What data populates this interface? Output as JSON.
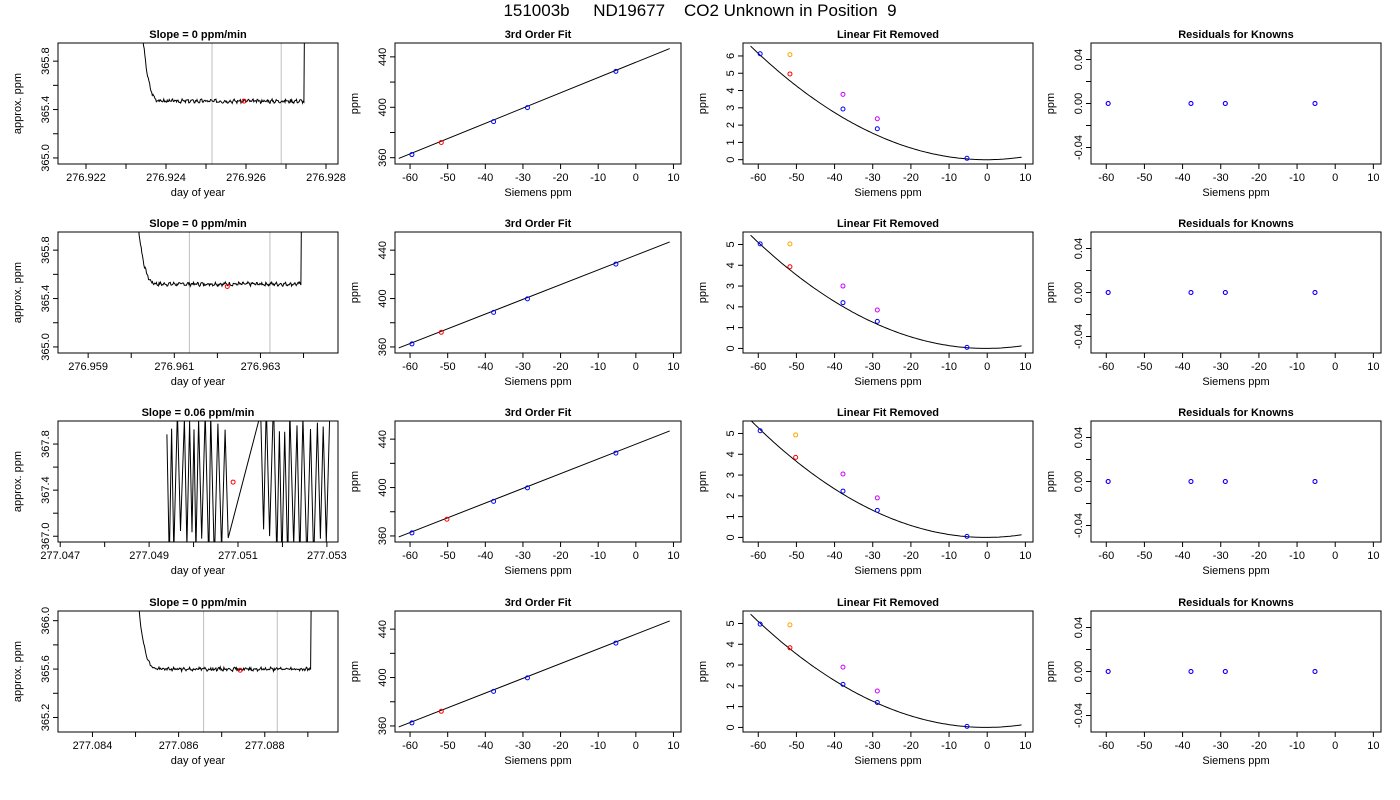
{
  "main_title": "151003b     ND19677    CO2 Unknown in Position  9",
  "colors": {
    "line": "#000000",
    "known": "#0000ff",
    "sample": "#ff0000",
    "raw_unknown": "#ffa500",
    "raw_known": "#cc00ff",
    "vline": "#bebebe"
  },
  "chart_data": [
    {
      "type": "line",
      "panel": "trace",
      "title": "Slope =  0  ppm/min",
      "xlabel": "day of year",
      "ylabel": "approx. ppm",
      "xlim": [
        276.9213,
        276.9283
      ],
      "ylim": [
        364.95,
        365.95
      ],
      "xticks": [
        276.922,
        276.924,
        276.926,
        276.928
      ],
      "xtick_labels": [
        "276.922",
        "276.924",
        "276.926",
        "276.928"
      ],
      "xticks_minor": [
        276.923,
        276.925,
        276.927
      ],
      "yticks": [
        365.0,
        365.4,
        365.8
      ],
      "ytick_labels": [
        "365.0",
        "365.4",
        "365.8"
      ],
      "yticks_minor": [
        365.2,
        365.6
      ],
      "trace": {
        "start": 276.9232,
        "end": 276.9276,
        "rise_start": 276.92332,
        "rise_end": 276.92745,
        "baseline": 365.47,
        "noise": 0.012,
        "seed": 3
      },
      "vlines": [
        276.92515,
        276.92688
      ],
      "marker": {
        "x": 276.92595,
        "y": 365.47
      }
    },
    {
      "type": "line",
      "panel": "fit",
      "title": "3rd Order Fit",
      "xlabel": "Siemens ppm",
      "ylabel": "ppm",
      "xlim": [
        -64,
        12
      ],
      "ylim": [
        355,
        451
      ],
      "xticks": [
        -60,
        -50,
        -40,
        -30,
        -20,
        -10,
        0,
        10
      ],
      "xtick_labels": [
        "-60",
        "-50",
        "-40",
        "-30",
        "-20",
        "-10",
        "0",
        "10"
      ],
      "yticks": [
        360,
        400,
        440
      ],
      "ytick_labels": [
        "360",
        "400",
        "440"
      ],
      "yticks_minor": [
        380,
        420
      ],
      "curve": {
        "x": [
          -63,
          9
        ],
        "y": [
          359.4,
          446.6
        ]
      },
      "known": {
        "x": [
          -59.5,
          -37.8,
          -28.8,
          -5.3
        ],
        "y": [
          362.5,
          388.6,
          399.7,
          428.5
        ]
      },
      "sample": {
        "x": [
          -51.7
        ],
        "y": [
          372.1
        ]
      }
    },
    {
      "type": "scatter",
      "panel": "linear",
      "title": "Linear Fit Removed",
      "xlabel": "Siemens ppm",
      "ylabel": "ppm",
      "xlim": [
        -64,
        12
      ],
      "ylim": [
        -0.25,
        6.75
      ],
      "xticks": [
        -60,
        -50,
        -40,
        -30,
        -20,
        -10,
        0,
        10
      ],
      "xtick_labels": [
        "-60",
        "-50",
        "-40",
        "-30",
        "-20",
        "-10",
        "0",
        "10"
      ],
      "yticks": [
        0,
        1,
        2,
        3,
        4,
        5,
        6
      ],
      "ytick_labels": [
        "0",
        "1",
        "2",
        "3",
        "4",
        "5",
        "6"
      ],
      "curve": {
        "x0": -0.2,
        "a": 0.00172,
        "xmin": -62,
        "xmax": 9
      },
      "known": {
        "x": [
          -59.5,
          -37.8,
          -28.8,
          -5.3
        ],
        "y": [
          6.13,
          2.93,
          1.79,
          0.08
        ]
      },
      "sample": {
        "x": [
          -51.7
        ],
        "y": [
          4.96
        ]
      },
      "raw_unknown": {
        "x": [
          -51.7
        ],
        "y": [
          6.08
        ]
      },
      "raw_known": {
        "x": [
          -37.8,
          -28.8
        ],
        "y": [
          3.78,
          2.37
        ]
      }
    },
    {
      "type": "scatter",
      "panel": "resid",
      "title": "Residuals for Knowns",
      "xlabel": "Siemens ppm",
      "ylabel": "ppm",
      "xlim": [
        -64,
        12
      ],
      "ylim": [
        -0.055,
        0.055
      ],
      "xticks": [
        -60,
        -50,
        -40,
        -30,
        -20,
        -10,
        0,
        10
      ],
      "xtick_labels": [
        "-60",
        "-50",
        "-40",
        "-30",
        "-20",
        "-10",
        "0",
        "10"
      ],
      "yticks": [
        -0.04,
        0,
        0.04
      ],
      "ytick_labels": [
        "-0.04",
        "0.00",
        "0.04"
      ],
      "yticks_minor": [
        -0.02,
        0.02
      ],
      "points": {
        "x": [
          -59.5,
          -37.8,
          -28.8,
          -5.3
        ],
        "y": [
          0,
          0,
          0,
          0
        ]
      }
    },
    {
      "type": "line",
      "panel": "trace",
      "title": "Slope =  0  ppm/min",
      "xlabel": "day of year",
      "ylabel": "approx. ppm",
      "xlim": [
        276.9583,
        276.9648
      ],
      "ylim": [
        364.95,
        365.95
      ],
      "xticks": [
        276.959,
        276.961,
        276.963
      ],
      "xtick_labels": [
        "276.959",
        "276.961",
        "276.963"
      ],
      "xticks_minor": [
        276.96,
        276.962,
        276.964
      ],
      "yticks": [
        365.0,
        365.4,
        365.8
      ],
      "ytick_labels": [
        "365.0",
        "365.4",
        "365.8"
      ],
      "yticks_minor": [
        365.2,
        365.6
      ],
      "trace": {
        "start": 276.96,
        "end": 276.964,
        "rise_start": 276.96005,
        "rise_end": 276.96394,
        "baseline": 365.52,
        "noise": 0.012,
        "seed": 7
      },
      "vlines": [
        276.96135,
        276.96322
      ],
      "marker": {
        "x": 276.96223,
        "y": 365.5
      }
    },
    {
      "type": "line",
      "panel": "fit",
      "title": "3rd Order Fit",
      "xlabel": "Siemens ppm",
      "ylabel": "ppm",
      "xlim": [
        -64,
        12
      ],
      "ylim": [
        355,
        455
      ],
      "xticks": [
        -60,
        -50,
        -40,
        -30,
        -20,
        -10,
        0,
        10
      ],
      "xtick_labels": [
        "-60",
        "-50",
        "-40",
        "-30",
        "-20",
        "-10",
        "0",
        "10"
      ],
      "yticks": [
        360,
        400,
        440
      ],
      "ytick_labels": [
        "360",
        "400",
        "440"
      ],
      "yticks_minor": [
        380,
        420
      ],
      "curve": {
        "x": [
          -63,
          9
        ],
        "y": [
          359.2,
          446.8
        ]
      },
      "known": {
        "x": [
          -59.5,
          -37.8,
          -28.8,
          -5.3
        ],
        "y": [
          362.5,
          388.6,
          399.7,
          428.5
        ]
      },
      "sample": {
        "x": [
          -51.7
        ],
        "y": [
          372.1
        ]
      }
    },
    {
      "type": "scatter",
      "panel": "linear",
      "title": "Linear Fit Removed",
      "xlabel": "Siemens ppm",
      "ylabel": "ppm",
      "xlim": [
        -64,
        12
      ],
      "ylim": [
        -0.22,
        5.6
      ],
      "xticks": [
        -60,
        -50,
        -40,
        -30,
        -20,
        -10,
        0,
        10
      ],
      "xtick_labels": [
        "-60",
        "-50",
        "-40",
        "-30",
        "-20",
        "-10",
        "0",
        "10"
      ],
      "yticks": [
        0,
        1,
        2,
        3,
        4,
        5
      ],
      "ytick_labels": [
        "0",
        "1",
        "2",
        "3",
        "4",
        "5"
      ],
      "curve": {
        "x0": -0.3,
        "a": 0.00143,
        "xmin": -62,
        "xmax": 9
      },
      "known": {
        "x": [
          -59.5,
          -37.8,
          -28.8,
          -5.3
        ],
        "y": [
          5.03,
          2.2,
          1.3,
          0.05
        ]
      },
      "sample": {
        "x": [
          -51.7
        ],
        "y": [
          3.93
        ]
      },
      "raw_unknown": {
        "x": [
          -51.7
        ],
        "y": [
          5.03
        ]
      },
      "raw_known": {
        "x": [
          -37.8,
          -28.8
        ],
        "y": [
          3.0,
          1.85
        ]
      }
    },
    {
      "type": "scatter",
      "panel": "resid",
      "title": "Residuals for Knowns",
      "xlabel": "Siemens ppm",
      "ylabel": "ppm",
      "xlim": [
        -64,
        12
      ],
      "ylim": [
        -0.055,
        0.055
      ],
      "xticks": [
        -60,
        -50,
        -40,
        -30,
        -20,
        -10,
        0,
        10
      ],
      "xtick_labels": [
        "-60",
        "-50",
        "-40",
        "-30",
        "-20",
        "-10",
        "0",
        "10"
      ],
      "yticks": [
        -0.04,
        0,
        0.04
      ],
      "ytick_labels": [
        "-0.04",
        "0.00",
        "0.04"
      ],
      "yticks_minor": [
        -0.02,
        0.02
      ],
      "points": {
        "x": [
          -59.5,
          -37.8,
          -28.8,
          -5.3
        ],
        "y": [
          0,
          0,
          0,
          0
        ]
      }
    },
    {
      "type": "line",
      "panel": "trace",
      "title": "Slope =  0.06  ppm/min",
      "xlabel": "day of year",
      "ylabel": "approx. ppm",
      "xlim": [
        277.04695,
        277.05325
      ],
      "ylim": [
        366.95,
        368.0
      ],
      "xticks": [
        277.047,
        277.049,
        277.051,
        277.053
      ],
      "xtick_labels": [
        "277.047",
        "277.049",
        "277.051",
        "277.053"
      ],
      "xticks_minor": [
        277.048,
        277.05,
        277.052
      ],
      "yticks": [
        367.0,
        367.4,
        367.8
      ],
      "ytick_labels": [
        "367.0",
        "367.4",
        "367.8"
      ],
      "yticks_minor": [
        367.2,
        367.6
      ],
      "trace": {
        "noisy": true,
        "start": 277.0494,
        "end": 277.0531,
        "gap_start": 277.0508,
        "gap_end": 277.0515,
        "seed": 11
      },
      "vlines": [],
      "marker": {
        "x": 277.05089,
        "y": 367.47
      }
    },
    {
      "type": "line",
      "panel": "fit",
      "title": "3rd Order Fit",
      "xlabel": "Siemens ppm",
      "ylabel": "ppm",
      "xlim": [
        -64,
        12
      ],
      "ylim": [
        355,
        455
      ],
      "xticks": [
        -60,
        -50,
        -40,
        -30,
        -20,
        -10,
        0,
        10
      ],
      "xtick_labels": [
        "-60",
        "-50",
        "-40",
        "-30",
        "-20",
        "-10",
        "0",
        "10"
      ],
      "yticks": [
        360,
        400,
        440
      ],
      "ytick_labels": [
        "360",
        "400",
        "440"
      ],
      "yticks_minor": [
        380,
        420
      ],
      "curve": {
        "x": [
          -63,
          9
        ],
        "y": [
          359.2,
          446.8
        ]
      },
      "known": {
        "x": [
          -59.5,
          -37.8,
          -28.8,
          -5.3
        ],
        "y": [
          362.5,
          388.6,
          399.7,
          428.5
        ]
      },
      "sample": {
        "x": [
          -50.2
        ],
        "y": [
          373.8
        ]
      }
    },
    {
      "type": "scatter",
      "panel": "linear",
      "title": "Linear Fit Removed",
      "xlabel": "Siemens ppm",
      "ylabel": "ppm",
      "xlim": [
        -64,
        12
      ],
      "ylim": [
        -0.22,
        5.6
      ],
      "xticks": [
        -60,
        -50,
        -40,
        -30,
        -20,
        -10,
        0,
        10
      ],
      "xtick_labels": [
        "-60",
        "-50",
        "-40",
        "-30",
        "-20",
        "-10",
        "0",
        "10"
      ],
      "yticks": [
        0,
        1,
        2,
        3,
        4,
        5
      ],
      "ytick_labels": [
        "0",
        "1",
        "2",
        "3",
        "4",
        "5"
      ],
      "curve": {
        "x0": -0.3,
        "a": 0.00148,
        "xmin": -62,
        "xmax": 9
      },
      "known": {
        "x": [
          -59.5,
          -37.8,
          -28.8,
          -5.3
        ],
        "y": [
          5.13,
          2.23,
          1.3,
          0.05
        ]
      },
      "sample": {
        "x": [
          -50.2
        ],
        "y": [
          3.85
        ]
      },
      "raw_unknown": {
        "x": [
          -50.2
        ],
        "y": [
          4.93
        ]
      },
      "raw_known": {
        "x": [
          -37.8,
          -28.8
        ],
        "y": [
          3.05,
          1.9
        ]
      }
    },
    {
      "type": "scatter",
      "panel": "resid",
      "title": "Residuals for Knowns",
      "xlabel": "Siemens ppm",
      "ylabel": "ppm",
      "xlim": [
        -64,
        12
      ],
      "ylim": [
        -0.055,
        0.055
      ],
      "xticks": [
        -60,
        -50,
        -40,
        -30,
        -20,
        -10,
        0,
        10
      ],
      "xtick_labels": [
        "-60",
        "-50",
        "-40",
        "-30",
        "-20",
        "-10",
        "0",
        "10"
      ],
      "yticks": [
        -0.04,
        0,
        0.04
      ],
      "ytick_labels": [
        "-0.04",
        "0.00",
        "0.04"
      ],
      "yticks_minor": [
        -0.02,
        0.02
      ],
      "points": {
        "x": [
          -59.5,
          -37.8,
          -28.8,
          -5.3
        ],
        "y": [
          0,
          0,
          0,
          0
        ]
      }
    },
    {
      "type": "line",
      "panel": "trace",
      "title": "Slope =  0  ppm/min",
      "xlabel": "day of year",
      "ylabel": "approx. ppm",
      "xlim": [
        277.0832,
        277.0897
      ],
      "ylim": [
        365.08,
        366.08
      ],
      "xticks": [
        277.084,
        277.086,
        277.088
      ],
      "xtick_labels": [
        "277.084",
        "277.086",
        "277.088"
      ],
      "xticks_minor": [
        277.085,
        277.087,
        277.089
      ],
      "yticks": [
        365.2,
        365.6,
        366.0
      ],
      "ytick_labels": [
        "365.2",
        "365.6",
        "366.0"
      ],
      "yticks_minor": [
        365.4,
        365.8
      ],
      "trace": {
        "start": 277.0848,
        "end": 277.0892,
        "rise_start": 277.08497,
        "rise_end": 277.08908,
        "baseline": 365.6,
        "noise": 0.012,
        "seed": 19
      },
      "vlines": [
        277.08658,
        277.08829
      ],
      "marker": {
        "x": 277.08743,
        "y": 365.59
      }
    },
    {
      "type": "line",
      "panel": "fit",
      "title": "3rd Order Fit",
      "xlabel": "Siemens ppm",
      "ylabel": "ppm",
      "xlim": [
        -64,
        12
      ],
      "ylim": [
        355,
        455
      ],
      "xticks": [
        -60,
        -50,
        -40,
        -30,
        -20,
        -10,
        0,
        10
      ],
      "xtick_labels": [
        "-60",
        "-50",
        "-40",
        "-30",
        "-20",
        "-10",
        "0",
        "10"
      ],
      "yticks": [
        360,
        400,
        440
      ],
      "ytick_labels": [
        "360",
        "400",
        "440"
      ],
      "yticks_minor": [
        380,
        420
      ],
      "curve": {
        "x": [
          -63,
          9
        ],
        "y": [
          359.2,
          446.8
        ]
      },
      "known": {
        "x": [
          -59.5,
          -37.8,
          -28.8,
          -5.3
        ],
        "y": [
          362.5,
          388.6,
          399.7,
          428.5
        ]
      },
      "sample": {
        "x": [
          -51.7
        ],
        "y": [
          372.1
        ]
      }
    },
    {
      "type": "scatter",
      "panel": "linear",
      "title": "Linear Fit Removed",
      "xlabel": "Siemens ppm",
      "ylabel": "ppm",
      "xlim": [
        -64,
        12
      ],
      "ylim": [
        -0.22,
        5.6
      ],
      "xticks": [
        -60,
        -50,
        -40,
        -30,
        -20,
        -10,
        0,
        10
      ],
      "xtick_labels": [
        "-60",
        "-50",
        "-40",
        "-30",
        "-20",
        "-10",
        "0",
        "10"
      ],
      "yticks": [
        0,
        1,
        2,
        3,
        4,
        5
      ],
      "ytick_labels": [
        "0",
        "1",
        "2",
        "3",
        "4",
        "5"
      ],
      "curve": {
        "x0": -0.3,
        "a": 0.00143,
        "xmin": -62,
        "xmax": 9
      },
      "known": {
        "x": [
          -59.5,
          -37.8,
          -28.8,
          -5.3
        ],
        "y": [
          4.97,
          2.07,
          1.2,
          0.05
        ]
      },
      "sample": {
        "x": [
          -51.7
        ],
        "y": [
          3.83
        ]
      },
      "raw_unknown": {
        "x": [
          -51.7
        ],
        "y": [
          4.93
        ]
      },
      "raw_known": {
        "x": [
          -37.8,
          -28.8
        ],
        "y": [
          2.9,
          1.75
        ]
      }
    },
    {
      "type": "scatter",
      "panel": "resid",
      "title": "Residuals for Knowns",
      "xlabel": "Siemens ppm",
      "ylabel": "ppm",
      "xlim": [
        -64,
        12
      ],
      "ylim": [
        -0.055,
        0.055
      ],
      "xticks": [
        -60,
        -50,
        -40,
        -30,
        -20,
        -10,
        0,
        10
      ],
      "xtick_labels": [
        "-60",
        "-50",
        "-40",
        "-30",
        "-20",
        "-10",
        "0",
        "10"
      ],
      "yticks": [
        -0.04,
        0,
        0.04
      ],
      "ytick_labels": [
        "-0.04",
        "0.00",
        "0.04"
      ],
      "yticks_minor": [
        -0.02,
        0.02
      ],
      "points": {
        "x": [
          -59.5,
          -37.8,
          -28.8,
          -5.3
        ],
        "y": [
          0,
          0,
          0,
          0
        ]
      }
    }
  ]
}
